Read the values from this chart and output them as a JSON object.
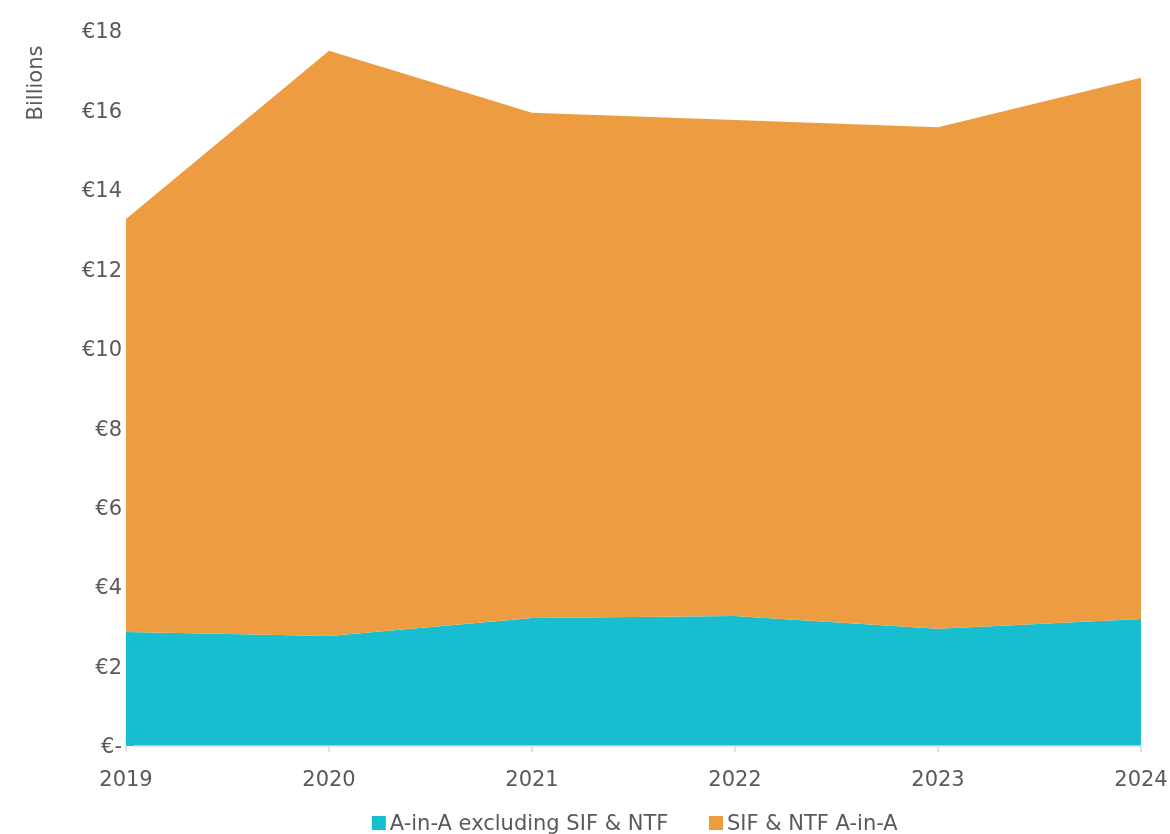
{
  "chart_data": {
    "type": "area",
    "stacked": true,
    "ylabel": "Billions",
    "categories": [
      "2019",
      "2020",
      "2021",
      "2022",
      "2023",
      "2024"
    ],
    "series": [
      {
        "name": "A-in-A excluding SIF & NTF",
        "color": "#17becf",
        "values": [
          2.87,
          2.77,
          3.22,
          3.27,
          2.95,
          3.2
        ]
      },
      {
        "name": "SIF & NTF A-in-A",
        "color": "#ed9c42",
        "values": [
          10.4,
          14.73,
          12.72,
          12.49,
          12.63,
          13.62
        ]
      }
    ],
    "ylim": [
      0,
      18
    ],
    "yticks": [
      {
        "value": 0,
        "label": "€-"
      },
      {
        "value": 2,
        "label": "€2"
      },
      {
        "value": 4,
        "label": "€4"
      },
      {
        "value": 6,
        "label": "€6"
      },
      {
        "value": 8,
        "label": "€8"
      },
      {
        "value": 10,
        "label": "€10"
      },
      {
        "value": 12,
        "label": "€12"
      },
      {
        "value": 14,
        "label": "€14"
      },
      {
        "value": 16,
        "label": "€16"
      },
      {
        "value": 18,
        "label": "€18"
      }
    ],
    "legend": "bottom"
  }
}
